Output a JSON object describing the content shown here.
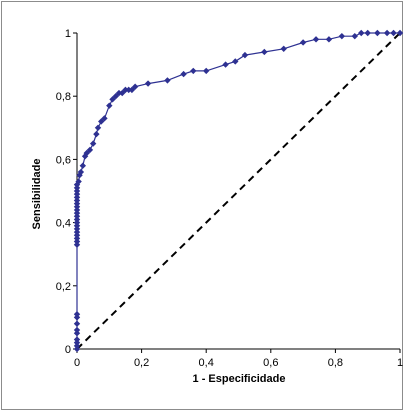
{
  "chart_data": {
    "type": "line",
    "title": "",
    "xlabel": "1 - Especificidade",
    "ylabel": "Sensibilidade",
    "xlim": [
      0,
      1
    ],
    "ylim": [
      0,
      1
    ],
    "x_ticks": [
      "0",
      "0,2",
      "0,4",
      "0,6",
      "0,8",
      "1"
    ],
    "y_ticks": [
      "0",
      "0,2",
      "0,4",
      "0,6",
      "0,8",
      "1"
    ],
    "grid": false,
    "legend": "none",
    "colors": {
      "series": "#2e3192",
      "reference": "#000000"
    },
    "series": [
      {
        "style": "solid-with-diamond-markers",
        "x": [
          0,
          0,
          0,
          0,
          0,
          0,
          0,
          0,
          0,
          0,
          0,
          0,
          0,
          0,
          0,
          0,
          0,
          0,
          0,
          0,
          0,
          0,
          0,
          0,
          0,
          0,
          0,
          0,
          0,
          0.005,
          0.008,
          0.012,
          0.018,
          0.025,
          0.03,
          0.04,
          0.05,
          0.06,
          0.065,
          0.075,
          0.085,
          0.1,
          0.11,
          0.12,
          0.13,
          0.14,
          0.15,
          0.16,
          0.17,
          0.18,
          0.22,
          0.28,
          0.33,
          0.36,
          0.4,
          0.46,
          0.49,
          0.52,
          0.58,
          0.64,
          0.7,
          0.74,
          0.78,
          0.82,
          0.86,
          0.88,
          0.9,
          0.93,
          0.96,
          0.98,
          1.0
        ],
        "y": [
          0,
          0.01,
          0.02,
          0.03,
          0.05,
          0.06,
          0.08,
          0.1,
          0.11,
          0.33,
          0.34,
          0.35,
          0.36,
          0.37,
          0.38,
          0.39,
          0.4,
          0.41,
          0.42,
          0.43,
          0.44,
          0.45,
          0.46,
          0.47,
          0.48,
          0.49,
          0.5,
          0.51,
          0.52,
          0.53,
          0.55,
          0.56,
          0.58,
          0.61,
          0.62,
          0.63,
          0.65,
          0.68,
          0.7,
          0.72,
          0.73,
          0.77,
          0.79,
          0.8,
          0.81,
          0.81,
          0.82,
          0.82,
          0.82,
          0.83,
          0.84,
          0.85,
          0.87,
          0.88,
          0.88,
          0.9,
          0.91,
          0.93,
          0.94,
          0.95,
          0.97,
          0.98,
          0.98,
          0.99,
          0.99,
          1.0,
          1.0,
          1.0,
          1.0,
          1.0,
          1.0
        ]
      },
      {
        "style": "dashed-reference",
        "x": [
          0,
          1
        ],
        "y": [
          0,
          1
        ]
      }
    ]
  }
}
